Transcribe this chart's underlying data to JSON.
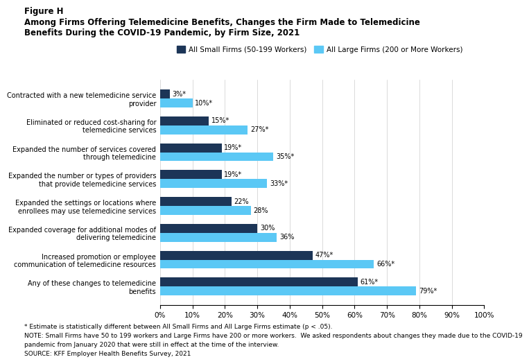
{
  "title_line1": "Figure H",
  "title_line2": "Among Firms Offering Telemedicine Benefits, Changes the Firm Made to Telemedicine",
  "title_line3": "Benefits During the COVID-19 Pandemic, by Firm Size, 2021",
  "categories": [
    "Contracted with a new telemedicine service\nprovider",
    "Eliminated or reduced cost-sharing for\ntelemedicine services",
    "Expanded the number of services covered\nthrough telemedicine",
    "Expanded the number or types of providers\nthat provide telemedicine services",
    "Expanded the settings or locations where\nenrollees may use telemedicine services",
    "Expanded coverage for additional modes of\ndelivering telemedicine",
    "Increased promotion or employee\ncommunication of telemedicine resources",
    "Any of these changes to telemedicine\nbenefits"
  ],
  "small_firms": [
    3,
    15,
    19,
    19,
    22,
    30,
    47,
    61
  ],
  "large_firms": [
    10,
    27,
    35,
    33,
    28,
    36,
    66,
    79
  ],
  "small_asterisk": [
    true,
    true,
    true,
    true,
    false,
    false,
    true,
    true
  ],
  "large_asterisk": [
    true,
    true,
    true,
    true,
    false,
    false,
    true,
    true
  ],
  "color_small": "#1c3557",
  "color_large": "#5bc8f5",
  "legend_small": "All Small Firms (50-199 Workers)",
  "legend_large": "All Large Firms (200 or More Workers)",
  "xlim": [
    0,
    100
  ],
  "xticks": [
    0,
    10,
    20,
    30,
    40,
    50,
    60,
    70,
    80,
    90,
    100
  ],
  "xtick_labels": [
    "0%",
    "10%",
    "20%",
    "30%",
    "40%",
    "50%",
    "60%",
    "70%",
    "80%",
    "90%",
    "100%"
  ],
  "footnote1": "* Estimate is statistically different between All Small Firms and All Large Firms estimate (p < .05).",
  "footnote2": "NOTE: Small Firms have 50 to 199 workers and Large Firms have 200 or more workers.  We asked respondents about changes they made due to the COVID-19",
  "footnote3": "pandemic from January 2020 that were still in effect at the time of the interview.",
  "footnote4": "SOURCE: KFF Employer Health Benefits Survey, 2021",
  "background_color": "#ffffff"
}
